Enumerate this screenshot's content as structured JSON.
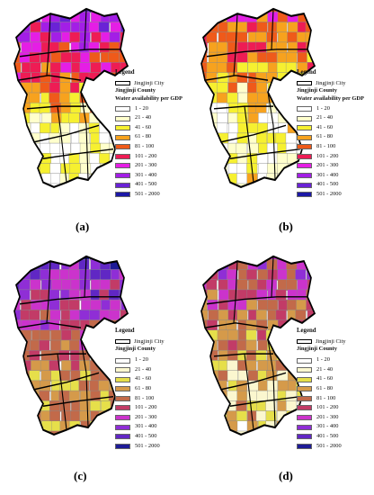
{
  "legend": {
    "title": "Legend",
    "city_label": "Jingjinji City",
    "county_label": "Jingjinji County",
    "water_label": "Water availability per GDP",
    "classes": [
      "1 - 20",
      "21 - 40",
      "41 - 60",
      "61 - 80",
      "81 - 100",
      "101 - 200",
      "201 - 300",
      "301 - 400",
      "401 - 500",
      "501 - 2000"
    ]
  },
  "palettes": {
    "standard": [
      "#ffffff",
      "#ffffcc",
      "#f6f030",
      "#f7a21e",
      "#ef5a1a",
      "#ee1c54",
      "#e51ee5",
      "#a31ee6",
      "#6a22d6",
      "#1c18a6"
    ],
    "muted": [
      "#ffffff",
      "#fbf7cf",
      "#e6df4a",
      "#d59a4a",
      "#c26a4a",
      "#c23b67",
      "#cb33cc",
      "#8f2ed6",
      "#6027c4",
      "#1e1b96"
    ]
  },
  "panels": [
    {
      "label": "(a)",
      "palette": "standard",
      "north_class": 8,
      "south_class": 1
    },
    {
      "label": "(b)",
      "palette": "standard",
      "north_class": 5,
      "south_class": 1
    },
    {
      "label": "(c)",
      "palette": "muted",
      "north_class": 8,
      "south_class": 3
    },
    {
      "label": "(d)",
      "palette": "muted",
      "north_class": 6,
      "south_class": 2
    }
  ]
}
